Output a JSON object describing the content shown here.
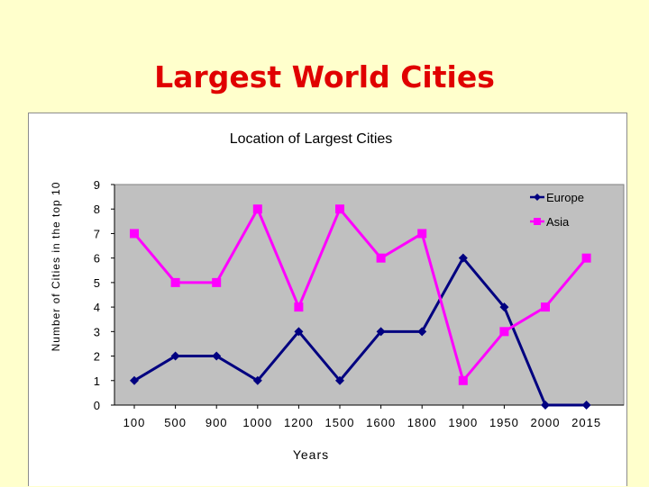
{
  "slide": {
    "title": "Largest World Cities"
  },
  "chart_data": {
    "type": "line",
    "title": "Location of Largest Cities",
    "xlabel": "Years",
    "ylabel": "Number of Cities in the top 10",
    "categories": [
      "100",
      "500",
      "900",
      "1000",
      "1200",
      "1500",
      "1600",
      "1800",
      "1900",
      "1950",
      "2000",
      "2015"
    ],
    "ylim": [
      0,
      9
    ],
    "yticks": [
      "0",
      "1",
      "2",
      "3",
      "4",
      "5",
      "6",
      "7",
      "8",
      "9"
    ],
    "grid": false,
    "legend_position": "top-right",
    "plot_background": "#c0c0c0",
    "series": [
      {
        "name": "Europe",
        "color": "#000080",
        "marker": "diamond",
        "values": [
          1,
          2,
          2,
          1,
          3,
          1,
          3,
          3,
          6,
          4,
          0,
          0
        ]
      },
      {
        "name": "Asia",
        "color": "#ff00ff",
        "marker": "square",
        "values": [
          7,
          5,
          5,
          8,
          4,
          8,
          6,
          7,
          1,
          3,
          4,
          6
        ]
      }
    ]
  }
}
